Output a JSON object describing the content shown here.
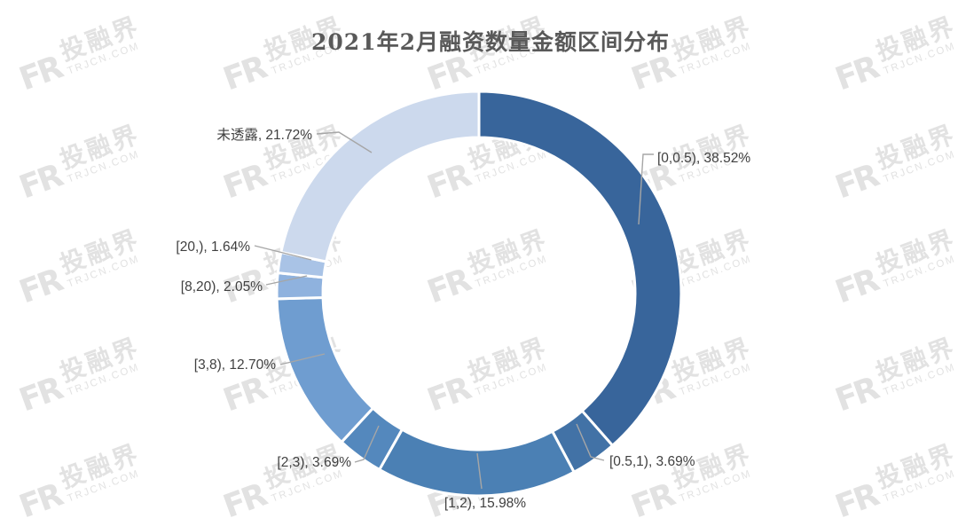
{
  "watermark": {
    "brand": "投融界",
    "domain": "TRJCN.COM",
    "logo_glyph": "FR",
    "color": "#e2e2e2"
  },
  "chart_data": {
    "type": "pie",
    "subtype": "donut",
    "title": "2021年2月融资数量金额区间分布",
    "unit": "%",
    "categories": [
      "[0,0.5)",
      "[0.5,1)",
      "[1,2)",
      "[2,3)",
      "[3,8)",
      "[8,20)",
      "[20,)",
      "未透露"
    ],
    "values": [
      38.52,
      3.69,
      15.98,
      3.69,
      12.7,
      2.05,
      1.64,
      21.72
    ],
    "labels": [
      "[0,0.5), 38.52%",
      "[0.5,1), 3.69%",
      "[1,2), 15.98%",
      "[2,3), 3.69%",
      "[3,8), 12.70%",
      "[8,20), 2.05%",
      "[20,), 1.64%",
      "未透露, 21.72%"
    ],
    "colors": [
      "#38659B",
      "#4272A6",
      "#4B80B4",
      "#5488BD",
      "#6F9DD0",
      "#8FB2DE",
      "#A9C3E6",
      "#CCD9ED"
    ],
    "start_angle_deg": 0,
    "direction": "clockwise",
    "hole_ratio": 0.77,
    "slice_border_color": "#ffffff",
    "label_color": "#404040",
    "leader_line_color": "#a6a6a6",
    "title_color": "#595959",
    "background_color": "#ffffff",
    "legend": "none"
  }
}
